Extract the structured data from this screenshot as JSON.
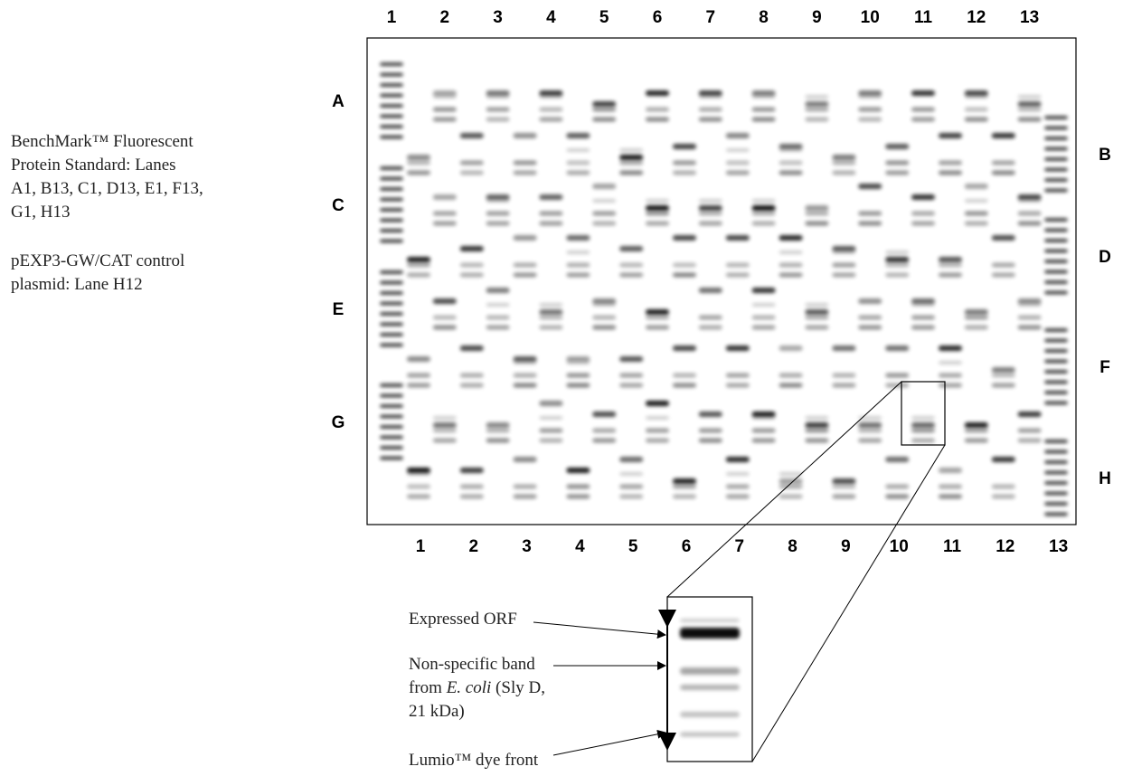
{
  "caption": {
    "standard_lines": [
      "BenchMark™ Fluorescent",
      "Protein Standard: Lanes",
      "A1, B13, C1, D13, E1, F13,",
      "G1, H13"
    ],
    "control_lines": [
      "pEXP3-GW/CAT control",
      "plasmid: Lane H12"
    ]
  },
  "gel": {
    "top_lanes": [
      "1",
      "2",
      "3",
      "4",
      "5",
      "6",
      "7",
      "8",
      "9",
      "10",
      "11",
      "12",
      "13"
    ],
    "bottom_lanes": [
      "1",
      "2",
      "3",
      "4",
      "5",
      "6",
      "7",
      "8",
      "9",
      "10",
      "11",
      "12",
      "13"
    ],
    "left_rows": [
      "A",
      "C",
      "E",
      "G"
    ],
    "right_rows": [
      "B",
      "D",
      "F",
      "H"
    ]
  },
  "inset": {
    "expressed_orf": "Expressed ORF",
    "nonspecific": {
      "line1": "Non-specific band",
      "line2_pre": "from",
      "line2_italic": "E. coli",
      "line2_post": "(Sly D,",
      "line3": "21 kDa)"
    },
    "dye_front": "Lumio™ dye front"
  }
}
